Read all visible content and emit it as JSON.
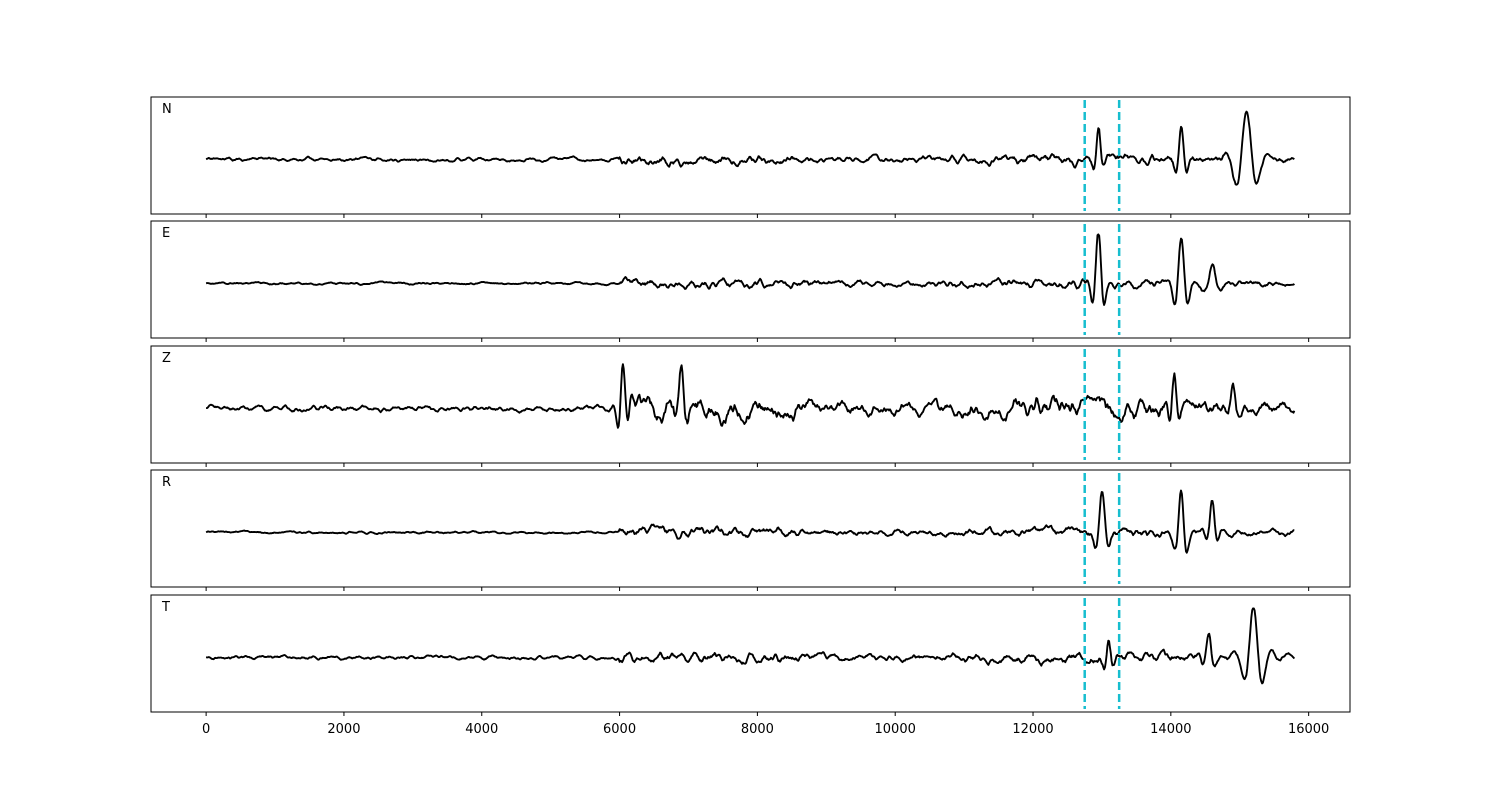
{
  "chart_data": {
    "type": "line",
    "title": "",
    "xlabel": "",
    "ylabel": "",
    "xlim": [
      -800,
      16600
    ],
    "x_ticks": [
      0,
      2000,
      4000,
      6000,
      8000,
      10000,
      12000,
      14000,
      16000
    ],
    "x_tick_labels": [
      "0",
      "2000",
      "4000",
      "6000",
      "8000",
      "10000",
      "12000",
      "14000",
      "16000"
    ],
    "grid": false,
    "x_end": 15800,
    "vertical_markers": {
      "color": "#17becf",
      "style": "dashed",
      "x": [
        12750,
        13250
      ]
    },
    "panels": [
      {
        "label": "N",
        "noise": 0.08,
        "amp": 0.14,
        "seed": 11,
        "onset": 6000,
        "events": [
          {
            "x": 12950,
            "a": 0.55,
            "w": 45,
            "f": 0.012
          },
          {
            "x": 14150,
            "a": 0.75,
            "w": 60,
            "f": 0.01
          },
          {
            "x": 15100,
            "a": 1.0,
            "w": 140,
            "f": 0.006
          }
        ]
      },
      {
        "label": "E",
        "noise": 0.05,
        "amp": 0.16,
        "seed": 23,
        "onset": 6000,
        "events": [
          {
            "x": 12950,
            "a": 1.0,
            "w": 70,
            "f": 0.01
          },
          {
            "x": 14150,
            "a": 0.85,
            "w": 80,
            "f": 0.009
          },
          {
            "x": 14600,
            "a": 0.35,
            "w": 90,
            "f": 0.008
          }
        ]
      },
      {
        "label": "Z",
        "noise": 0.12,
        "amp": 0.35,
        "seed": 37,
        "onset": 6000,
        "events": [
          {
            "x": 6050,
            "a": 0.9,
            "w": 60,
            "f": 0.012
          },
          {
            "x": 6900,
            "a": 0.7,
            "w": 70,
            "f": 0.01
          },
          {
            "x": 14050,
            "a": 0.75,
            "w": 50,
            "f": 0.011
          },
          {
            "x": 14900,
            "a": 0.45,
            "w": 60,
            "f": 0.01
          }
        ]
      },
      {
        "label": "R",
        "noise": 0.05,
        "amp": 0.18,
        "seed": 53,
        "onset": 6000,
        "events": [
          {
            "x": 13000,
            "a": 0.85,
            "w": 70,
            "f": 0.009
          },
          {
            "x": 14150,
            "a": 0.85,
            "w": 70,
            "f": 0.01
          },
          {
            "x": 14600,
            "a": 0.6,
            "w": 60,
            "f": 0.01
          }
        ]
      },
      {
        "label": "T",
        "noise": 0.08,
        "amp": 0.15,
        "seed": 71,
        "onset": 6000,
        "events": [
          {
            "x": 13100,
            "a": 0.4,
            "w": 50,
            "f": 0.012
          },
          {
            "x": 14550,
            "a": 0.45,
            "w": 70,
            "f": 0.01
          },
          {
            "x": 15200,
            "a": 1.0,
            "w": 120,
            "f": 0.007
          }
        ]
      }
    ]
  }
}
